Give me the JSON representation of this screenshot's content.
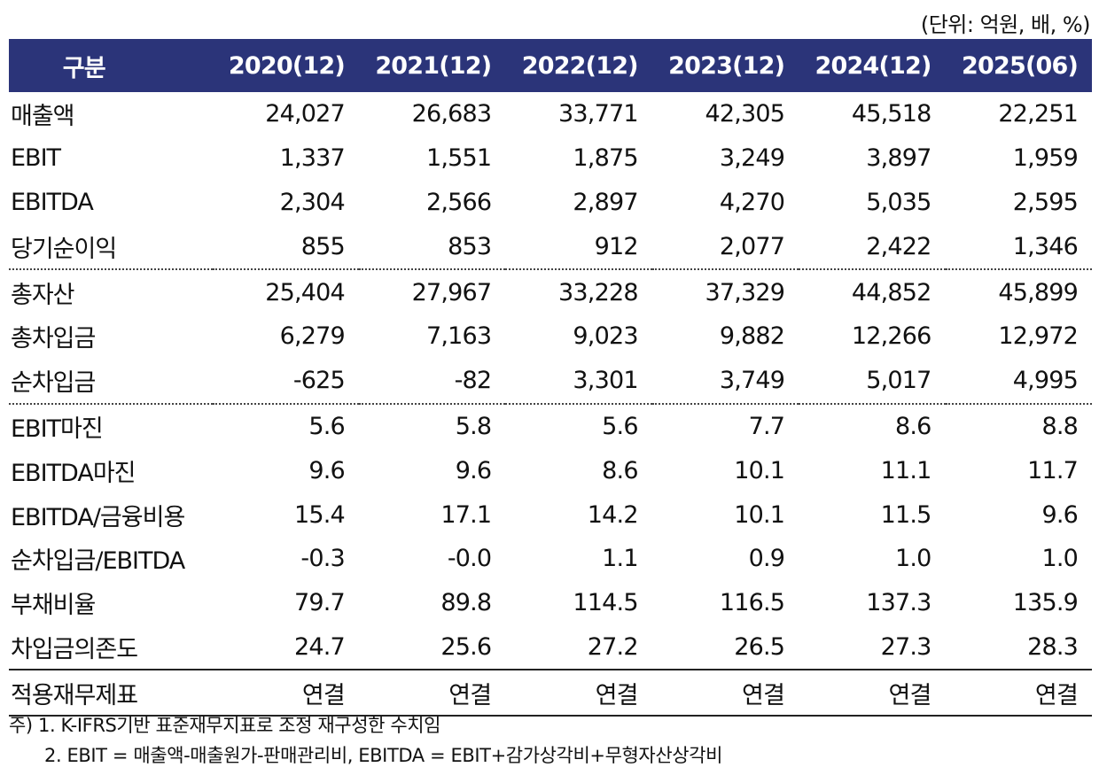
{
  "unit_note": "(단위: 억원, 배, %)",
  "header": [
    "구분",
    "2020(12)",
    "2021(12)",
    "2022(12)",
    "2023(12)",
    "2024(12)",
    "2025(06)"
  ],
  "rows": [
    {
      "label": "매출액",
      "values": [
        "24,027",
        "26,683",
        "33,771",
        "42,305",
        "45,518",
        "22,251"
      ]
    },
    {
      "label": "EBIT",
      "values": [
        "1,337",
        "1,551",
        "1,875",
        "3,249",
        "3,897",
        "1,959"
      ]
    },
    {
      "label": "EBITDA",
      "values": [
        "2,304",
        "2,566",
        "2,897",
        "4,270",
        "5,035",
        "2,595"
      ]
    },
    {
      "label": "당기순이익",
      "values": [
        "855",
        "853",
        "912",
        "2,077",
        "2,422",
        "1,346"
      ]
    },
    {
      "label": "총자산",
      "values": [
        "25,404",
        "27,967",
        "33,228",
        "37,329",
        "44,852",
        "45,899"
      ]
    },
    {
      "label": "총차입금",
      "values": [
        "6,279",
        "7,163",
        "9,023",
        "9,882",
        "12,266",
        "12,972"
      ]
    },
    {
      "label": "순차입금",
      "values": [
        "-625",
        "-82",
        "3,301",
        "3,749",
        "5,017",
        "4,995"
      ]
    },
    {
      "label": "EBIT마진",
      "values": [
        "5.6",
        "5.8",
        "5.6",
        "7.7",
        "8.6",
        "8.8"
      ]
    },
    {
      "label": "EBITDA마진",
      "values": [
        "9.6",
        "9.6",
        "8.6",
        "10.1",
        "11.1",
        "11.7"
      ]
    },
    {
      "label": "EBITDA/금융비용",
      "values": [
        "15.4",
        "17.1",
        "14.2",
        "10.1",
        "11.5",
        "9.6"
      ]
    },
    {
      "label": "순차입금/EBITDA",
      "values": [
        "-0.3",
        "-0.0",
        "1.1",
        "0.9",
        "1.0",
        "1.0"
      ]
    },
    {
      "label": "부채비율",
      "values": [
        "79.7",
        "89.8",
        "114.5",
        "116.5",
        "137.3",
        "135.9"
      ]
    },
    {
      "label": "차입금의존도",
      "values": [
        "24.7",
        "25.6",
        "27.2",
        "26.5",
        "27.3",
        "28.3"
      ]
    },
    {
      "label": "적용재무제표",
      "values": [
        "연결",
        "연결",
        "연결",
        "연결",
        "연결",
        "연결"
      ]
    }
  ],
  "notes": [
    "주) 1. K-IFRS기반  표준재무지표로  조정  재구성한  수치임",
    "2. EBIT =  매출액-매출원가-판매관리비, EBITDA = EBIT+감가상각비+무형자산상각비"
  ],
  "colors": {
    "header_bg": "#2b3479",
    "header_text": "#ffffff"
  }
}
